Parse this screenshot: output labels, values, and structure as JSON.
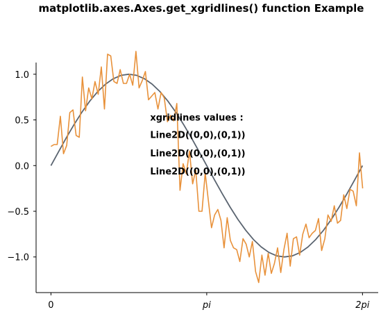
{
  "chart_data": {
    "type": "line",
    "title": "matplotlib.axes.Axes.get_xgridlines() function Example",
    "xlabel": "",
    "ylabel": "",
    "xlim": [
      -0.3,
      6.6
    ],
    "ylim": [
      -1.39,
      1.28
    ],
    "grid": false,
    "x_ticks": [
      {
        "value": 0,
        "label": "0",
        "italic": false
      },
      {
        "value": 3.14159,
        "label": "pi",
        "italic": true
      },
      {
        "value": 6.28318,
        "label": "2pi",
        "italic": true
      }
    ],
    "y_ticks": [
      {
        "value": 1.0,
        "label": "1.0"
      },
      {
        "value": 0.5,
        "label": "0.5"
      },
      {
        "value": 0.0,
        "label": "0.0"
      },
      {
        "value": -0.5,
        "label": "−0.5"
      },
      {
        "value": -1.0,
        "label": "−1.0"
      }
    ],
    "annotation": {
      "x": 2.0,
      "lines": [
        {
          "text": "xgridlines values :",
          "y": 0.53
        },
        {
          "text": "Line2D((0,0),(0,1))",
          "y": 0.34
        },
        {
          "text": "Line2D((0,0),(0,1))",
          "y": 0.14
        },
        {
          "text": "Line2D((0,0),(0,1))",
          "y": -0.06
        }
      ]
    },
    "series": [
      {
        "color": "#5a6470",
        "x": [
          0,
          0.157,
          0.314,
          0.471,
          0.628,
          0.785,
          0.942,
          1.1,
          1.257,
          1.414,
          1.571,
          1.728,
          1.885,
          2.042,
          2.199,
          2.356,
          2.513,
          2.67,
          2.827,
          2.985,
          3.142,
          3.299,
          3.456,
          3.613,
          3.77,
          3.927,
          4.084,
          4.241,
          4.398,
          4.555,
          4.712,
          4.869,
          5.027,
          5.184,
          5.341,
          5.498,
          5.655,
          5.812,
          5.969,
          6.126,
          6.283
        ],
        "y": [
          0,
          0.156,
          0.309,
          0.454,
          0.588,
          0.707,
          0.809,
          0.891,
          0.951,
          0.988,
          1.0,
          0.988,
          0.951,
          0.891,
          0.809,
          0.707,
          0.588,
          0.454,
          0.309,
          0.156,
          0,
          -0.156,
          -0.309,
          -0.454,
          -0.588,
          -0.707,
          -0.809,
          -0.891,
          -0.951,
          -0.988,
          -1.0,
          -0.988,
          -0.951,
          -0.891,
          -0.809,
          -0.707,
          -0.588,
          -0.454,
          -0.309,
          -0.156,
          0
        ]
      },
      {
        "color": "#e8913a",
        "x": [
          0,
          0.063,
          0.126,
          0.19,
          0.253,
          0.317,
          0.38,
          0.444,
          0.507,
          0.571,
          0.634,
          0.698,
          0.761,
          0.825,
          0.888,
          0.952,
          1.015,
          1.079,
          1.142,
          1.206,
          1.269,
          1.333,
          1.396,
          1.46,
          1.523,
          1.587,
          1.65,
          1.714,
          1.777,
          1.841,
          1.904,
          1.968,
          2.031,
          2.095,
          2.158,
          2.222,
          2.285,
          2.349,
          2.412,
          2.476,
          2.539,
          2.603,
          2.666,
          2.73,
          2.793,
          2.857,
          2.92,
          2.984,
          3.047,
          3.111,
          3.174,
          3.238,
          3.301,
          3.365,
          3.428,
          3.492,
          3.555,
          3.619,
          3.682,
          3.746,
          3.809,
          3.873,
          3.936,
          4.0,
          4.063,
          4.127,
          4.19,
          4.254,
          4.317,
          4.381,
          4.444,
          4.508,
          4.571,
          4.635,
          4.698,
          4.762,
          4.825,
          4.889,
          4.952,
          5.016,
          5.079,
          5.143,
          5.206,
          5.27,
          5.333,
          5.397,
          5.46,
          5.524,
          5.587,
          5.651,
          5.714,
          5.778,
          5.841,
          5.905,
          5.968,
          6.032,
          6.095,
          6.159,
          6.222,
          6.286
        ],
        "y": [
          0.21,
          0.23,
          0.23,
          0.54,
          0.13,
          0.22,
          0.58,
          0.61,
          0.33,
          0.31,
          0.97,
          0.6,
          0.85,
          0.73,
          0.92,
          0.78,
          1.08,
          0.62,
          1.22,
          1.2,
          0.92,
          0.9,
          1.05,
          0.9,
          0.9,
          1.0,
          0.88,
          1.25,
          0.85,
          0.93,
          1.03,
          0.72,
          0.76,
          0.8,
          0.62,
          0.8,
          0.74,
          0.48,
          0.55,
          0.49,
          0.68,
          -0.27,
          0.02,
          -0.09,
          0.16,
          -0.2,
          -0.05,
          -0.5,
          -0.5,
          -0.08,
          -0.38,
          -0.68,
          -0.54,
          -0.48,
          -0.6,
          -0.9,
          -0.57,
          -0.82,
          -0.9,
          -0.92,
          -1.05,
          -0.8,
          -0.86,
          -1.0,
          -0.83,
          -1.16,
          -1.28,
          -0.98,
          -1.2,
          -0.96,
          -1.18,
          -1.07,
          -0.9,
          -1.17,
          -0.92,
          -0.74,
          -1.1,
          -0.8,
          -0.78,
          -0.98,
          -0.75,
          -0.64,
          -0.79,
          -0.74,
          -0.71,
          -0.58,
          -0.93,
          -0.8,
          -0.54,
          -0.61,
          -0.44,
          -0.63,
          -0.6,
          -0.32,
          -0.47,
          -0.26,
          -0.28,
          -0.44,
          0.14,
          -0.25
        ]
      }
    ]
  }
}
